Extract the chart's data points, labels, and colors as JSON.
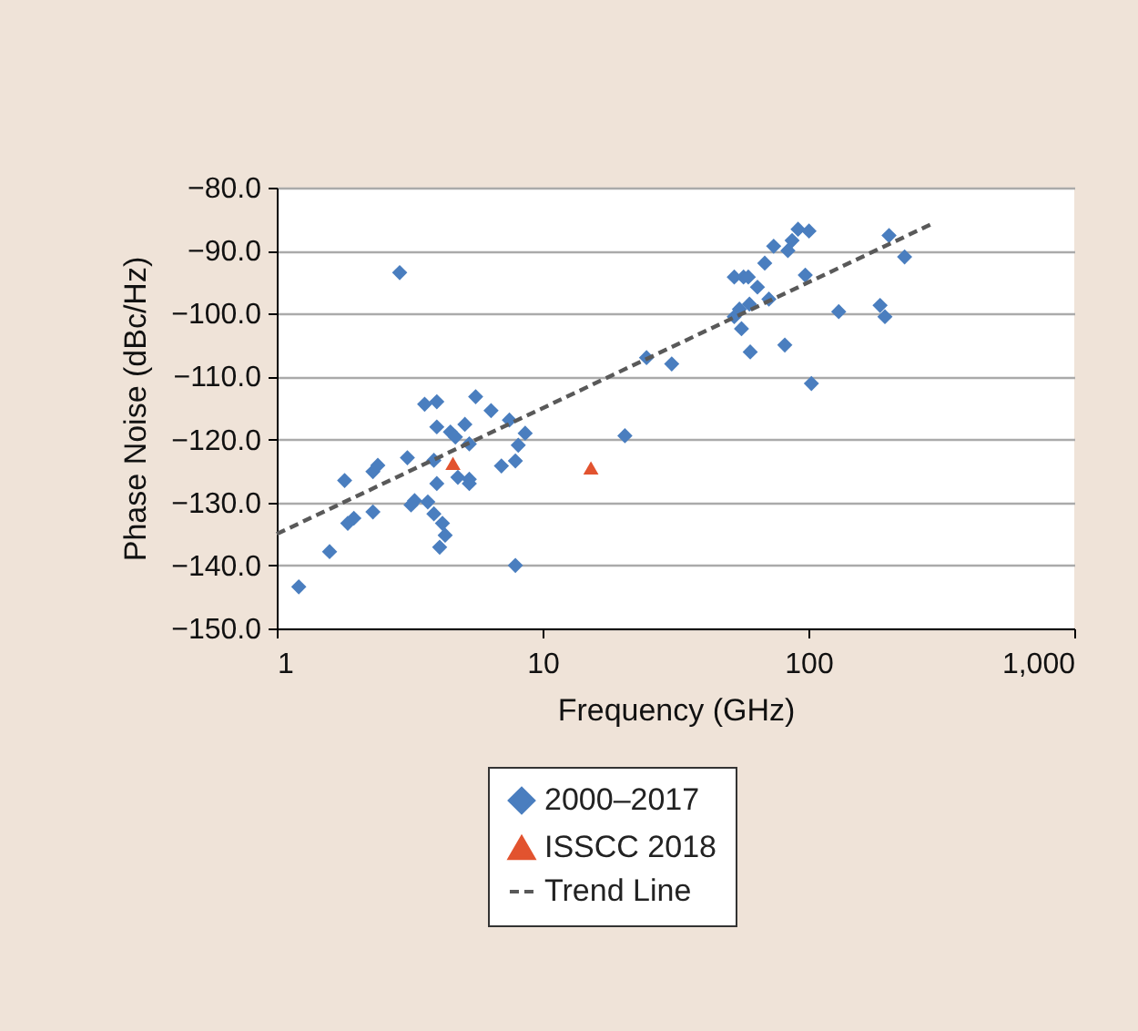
{
  "chart_data": {
    "type": "scatter",
    "xlabel": "Frequency (GHz)",
    "ylabel": "Phase Noise (dBc/Hz)",
    "log": "x",
    "grid": "y",
    "legend": "bottom",
    "xlim": [
      1,
      1000
    ],
    "xticks": [
      1,
      10,
      100,
      {
        "value": 1000,
        "label": "1,000"
      }
    ],
    "ylim": [
      -150,
      -80
    ],
    "yticks": [
      {
        "value": -150,
        "label": "−150.0"
      },
      {
        "value": -140,
        "label": "−140.0"
      },
      {
        "value": -130,
        "label": "−130.0"
      },
      {
        "value": -120,
        "label": "−120.0"
      },
      {
        "value": -110,
        "label": "−110.0"
      },
      {
        "value": -100,
        "label": "−100.0"
      },
      {
        "value": -90,
        "label": "−90.0"
      },
      {
        "value": -80,
        "label": "−80.0"
      }
    ],
    "series": [
      {
        "name": "2000–2017",
        "type": "scatter",
        "marker": "diamond",
        "color": "#4a7ebf",
        "x": [
          2.9,
          3.6,
          4.0,
          5.6,
          6.4,
          7.5,
          8.6,
          8.1,
          7.9,
          7.0,
          7.9,
          4.0,
          4.5,
          4.7,
          5.1,
          5.3,
          3.9,
          3.1,
          4.8,
          5.3,
          5.3,
          4.0,
          1.8,
          2.3,
          2.4,
          3.3,
          3.2,
          3.7,
          3.9,
          4.2,
          4.3,
          4.1,
          2.3,
          1.95,
          1.85,
          1.58,
          1.21,
          20.4,
          24.6,
          30.6,
          52.6,
          57,
          59.4,
          64.3,
          68.5,
          74,
          83.7,
          86.8,
          91.4,
          100.5,
          97.3,
          71,
          60,
          55,
          52.6,
          56,
          60.4,
          81.5,
          102.6,
          130,
          186,
          194,
          201,
          230
        ],
        "values": [
          -93.5,
          -114.4,
          -114,
          -113.2,
          -115.4,
          -116.9,
          -119,
          -120.9,
          -123.4,
          -124.2,
          -140,
          -118,
          -118.8,
          -119.6,
          -117.6,
          -120.7,
          -123.3,
          -122.9,
          -126,
          -126.3,
          -127,
          -127,
          -126.5,
          -125.1,
          -124.1,
          -129.7,
          -130.4,
          -129.9,
          -131.8,
          -133.3,
          -135.2,
          -137.1,
          -131.5,
          -132.5,
          -133.3,
          -137.8,
          -143.4,
          -119.4,
          -107,
          -108,
          -94.2,
          -94.2,
          -94.2,
          -95.8,
          -92,
          -89.3,
          -90,
          -88.4,
          -86.6,
          -86.9,
          -93.9,
          -97.7,
          -98.5,
          -99.3,
          -100.5,
          -102.4,
          -106.1,
          -105,
          -111.1,
          -99.7,
          -98.7,
          -100.5,
          -87.6,
          -91
        ]
      },
      {
        "name": "ISSCC 2018",
        "type": "scatter",
        "marker": "triangle",
        "color": "#e2532f",
        "x": [
          4.6,
          15.2
        ],
        "values": [
          -123.8,
          -124.5
        ]
      },
      {
        "name": "Trend Line",
        "type": "line",
        "marker": "none",
        "line_style": "dashed",
        "color": "#595959",
        "x": [
          1,
          290
        ],
        "values": [
          -135,
          -85.8
        ]
      }
    ]
  }
}
